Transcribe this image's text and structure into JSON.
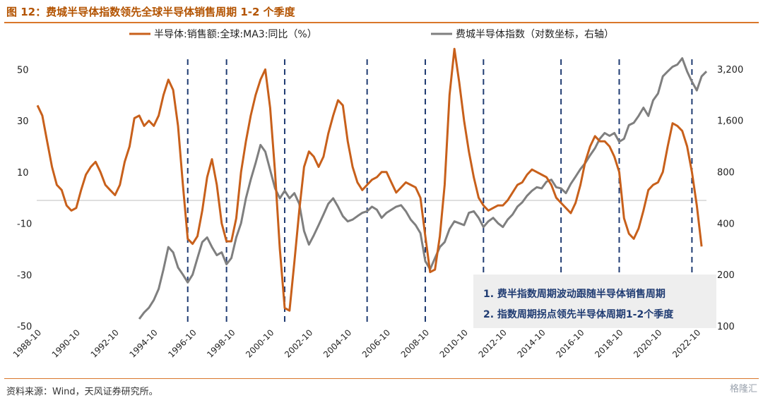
{
  "title": "图 12：费城半导体指数领先全球半导体销售周期 1-2 个季度",
  "source": "资料来源：Wind，天风证券研究所。",
  "watermark": "格隆汇",
  "colors": {
    "sales": "#c8601b",
    "sox": "#7f7f7f",
    "cycle_line": "#1f3b72",
    "annotation_bg": "#eeeeee",
    "accent": "#d9772b"
  },
  "annotation": [
    "1. 费半指数周期波动跟随半导体销售周期",
    "2. 指数周期拐点领先半导体周期1-2个季度"
  ],
  "chart_data": {
    "type": "line",
    "title": "图 12：费城半导体指数领先全球半导体销售周期 1-2 个季度",
    "x_ticks": [
      "1988-10",
      "1990-10",
      "1992-10",
      "1994-10",
      "1996-10",
      "1998-10",
      "2000-10",
      "2002-10",
      "2004-10",
      "2006-10",
      "2008-10",
      "2010-10",
      "2012-10",
      "2014-10",
      "2016-10",
      "2018-10",
      "2020-10",
      "2022-10"
    ],
    "y_left": {
      "ticks": [
        50,
        30,
        10,
        -10,
        -30,
        -50
      ],
      "range": [
        -50,
        60
      ]
    },
    "y_right": {
      "scale": "log",
      "ticks": [
        "3,200",
        "1,600",
        "800",
        "400",
        "200",
        "100"
      ],
      "tick_values": [
        3200,
        1600,
        800,
        400,
        200,
        100
      ],
      "range": [
        100,
        4500
      ]
    },
    "cycle_markers": [
      "1996-07",
      "1998-07",
      "2001-07",
      "2005-10",
      "2008-10",
      "2011-10",
      "2015-10",
      "2018-10",
      "2022-07"
    ],
    "series": [
      {
        "name": "半导体:销售额:全球:MA3:同比（%）",
        "axis": "left",
        "points": [
          [
            "1988-10",
            36
          ],
          [
            "1989-01",
            32
          ],
          [
            "1989-04",
            22
          ],
          [
            "1989-07",
            12
          ],
          [
            "1989-10",
            5
          ],
          [
            "1990-01",
            3
          ],
          [
            "1990-04",
            -3
          ],
          [
            "1990-07",
            -5
          ],
          [
            "1990-10",
            -4
          ],
          [
            "1991-01",
            3
          ],
          [
            "1991-04",
            9
          ],
          [
            "1991-07",
            12
          ],
          [
            "1991-10",
            14
          ],
          [
            "1992-01",
            10
          ],
          [
            "1992-04",
            5
          ],
          [
            "1992-07",
            3
          ],
          [
            "1992-10",
            1
          ],
          [
            "1993-01",
            5
          ],
          [
            "1993-04",
            14
          ],
          [
            "1993-07",
            20
          ],
          [
            "1993-10",
            31
          ],
          [
            "1994-01",
            32
          ],
          [
            "1994-04",
            28
          ],
          [
            "1994-07",
            30
          ],
          [
            "1994-10",
            28
          ],
          [
            "1995-01",
            32
          ],
          [
            "1995-04",
            40
          ],
          [
            "1995-07",
            46
          ],
          [
            "1995-10",
            42
          ],
          [
            "1996-01",
            28
          ],
          [
            "1996-04",
            5
          ],
          [
            "1996-07",
            -16
          ],
          [
            "1996-10",
            -18
          ],
          [
            "1997-01",
            -15
          ],
          [
            "1997-04",
            -5
          ],
          [
            "1997-07",
            8
          ],
          [
            "1997-10",
            15
          ],
          [
            "1998-01",
            5
          ],
          [
            "1998-04",
            -10
          ],
          [
            "1998-07",
            -17
          ],
          [
            "1998-10",
            -17
          ],
          [
            "1999-01",
            -8
          ],
          [
            "1999-04",
            10
          ],
          [
            "1999-07",
            22
          ],
          [
            "1999-10",
            32
          ],
          [
            "2000-01",
            40
          ],
          [
            "2000-04",
            46
          ],
          [
            "2000-07",
            50
          ],
          [
            "2000-10",
            35
          ],
          [
            "2001-01",
            10
          ],
          [
            "2001-04",
            -20
          ],
          [
            "2001-07",
            -43
          ],
          [
            "2001-10",
            -44
          ],
          [
            "2002-01",
            -25
          ],
          [
            "2002-04",
            -5
          ],
          [
            "2002-07",
            12
          ],
          [
            "2002-10",
            18
          ],
          [
            "2003-01",
            16
          ],
          [
            "2003-04",
            12
          ],
          [
            "2003-07",
            16
          ],
          [
            "2003-10",
            25
          ],
          [
            "2004-01",
            32
          ],
          [
            "2004-04",
            38
          ],
          [
            "2004-07",
            36
          ],
          [
            "2004-10",
            22
          ],
          [
            "2005-01",
            12
          ],
          [
            "2005-04",
            6
          ],
          [
            "2005-07",
            3
          ],
          [
            "2005-10",
            5
          ],
          [
            "2006-01",
            7
          ],
          [
            "2006-04",
            8
          ],
          [
            "2006-07",
            10
          ],
          [
            "2006-10",
            10
          ],
          [
            "2007-01",
            6
          ],
          [
            "2007-04",
            2
          ],
          [
            "2007-07",
            4
          ],
          [
            "2007-10",
            6
          ],
          [
            "2008-01",
            5
          ],
          [
            "2008-04",
            4
          ],
          [
            "2008-07",
            0
          ],
          [
            "2008-10",
            -15
          ],
          [
            "2009-01",
            -29
          ],
          [
            "2009-04",
            -28
          ],
          [
            "2009-07",
            -15
          ],
          [
            "2009-10",
            5
          ],
          [
            "2010-01",
            40
          ],
          [
            "2010-04",
            58
          ],
          [
            "2010-07",
            45
          ],
          [
            "2010-10",
            30
          ],
          [
            "2011-01",
            18
          ],
          [
            "2011-04",
            8
          ],
          [
            "2011-07",
            0
          ],
          [
            "2011-10",
            -3
          ],
          [
            "2012-01",
            -5
          ],
          [
            "2012-04",
            -4
          ],
          [
            "2012-07",
            -3
          ],
          [
            "2012-10",
            -3
          ],
          [
            "2013-01",
            -1
          ],
          [
            "2013-04",
            2
          ],
          [
            "2013-07",
            5
          ],
          [
            "2013-10",
            6
          ],
          [
            "2014-01",
            9
          ],
          [
            "2014-04",
            11
          ],
          [
            "2014-07",
            10
          ],
          [
            "2014-10",
            9
          ],
          [
            "2015-01",
            8
          ],
          [
            "2015-04",
            5
          ],
          [
            "2015-07",
            0
          ],
          [
            "2015-10",
            -2
          ],
          [
            "2016-01",
            -4
          ],
          [
            "2016-04",
            -6
          ],
          [
            "2016-07",
            -2
          ],
          [
            "2016-10",
            5
          ],
          [
            "2017-01",
            14
          ],
          [
            "2017-04",
            20
          ],
          [
            "2017-07",
            24
          ],
          [
            "2017-10",
            22
          ],
          [
            "2018-01",
            22
          ],
          [
            "2018-04",
            20
          ],
          [
            "2018-07",
            16
          ],
          [
            "2018-10",
            10
          ],
          [
            "2019-01",
            -8
          ],
          [
            "2019-04",
            -14
          ],
          [
            "2019-07",
            -16
          ],
          [
            "2019-10",
            -12
          ],
          [
            "2020-01",
            -5
          ],
          [
            "2020-04",
            3
          ],
          [
            "2020-07",
            5
          ],
          [
            "2020-10",
            6
          ],
          [
            "2021-01",
            10
          ],
          [
            "2021-04",
            20
          ],
          [
            "2021-07",
            29
          ],
          [
            "2021-10",
            28
          ],
          [
            "2022-01",
            26
          ],
          [
            "2022-04",
            20
          ],
          [
            "2022-07",
            10
          ],
          [
            "2022-10",
            -3
          ],
          [
            "2023-01",
            -19
          ]
        ]
      },
      {
        "name": "费城半导体指数（对数坐标，右轴）",
        "axis": "right",
        "points": [
          [
            "1994-01",
            110
          ],
          [
            "1994-04",
            120
          ],
          [
            "1994-07",
            128
          ],
          [
            "1994-10",
            142
          ],
          [
            "1995-01",
            165
          ],
          [
            "1995-04",
            215
          ],
          [
            "1995-07",
            290
          ],
          [
            "1995-10",
            270
          ],
          [
            "1996-01",
            220
          ],
          [
            "1996-04",
            200
          ],
          [
            "1996-07",
            180
          ],
          [
            "1996-10",
            200
          ],
          [
            "1997-01",
            250
          ],
          [
            "1997-04",
            310
          ],
          [
            "1997-07",
            330
          ],
          [
            "1997-10",
            290
          ],
          [
            "1998-01",
            260
          ],
          [
            "1998-04",
            270
          ],
          [
            "1998-07",
            230
          ],
          [
            "1998-10",
            250
          ],
          [
            "1999-01",
            330
          ],
          [
            "1999-04",
            400
          ],
          [
            "1999-07",
            560
          ],
          [
            "1999-10",
            720
          ],
          [
            "2000-01",
            900
          ],
          [
            "2000-04",
            1150
          ],
          [
            "2000-07",
            1050
          ],
          [
            "2000-10",
            820
          ],
          [
            "2001-01",
            640
          ],
          [
            "2001-04",
            560
          ],
          [
            "2001-07",
            620
          ],
          [
            "2001-10",
            560
          ],
          [
            "2002-01",
            600
          ],
          [
            "2002-04",
            520
          ],
          [
            "2002-07",
            360
          ],
          [
            "2002-10",
            300
          ],
          [
            "2003-01",
            340
          ],
          [
            "2003-04",
            390
          ],
          [
            "2003-07",
            450
          ],
          [
            "2003-10",
            520
          ],
          [
            "2004-01",
            560
          ],
          [
            "2004-04",
            500
          ],
          [
            "2004-07",
            440
          ],
          [
            "2004-10",
            410
          ],
          [
            "2005-01",
            420
          ],
          [
            "2005-04",
            440
          ],
          [
            "2005-07",
            460
          ],
          [
            "2005-10",
            470
          ],
          [
            "2006-01",
            500
          ],
          [
            "2006-04",
            480
          ],
          [
            "2006-07",
            430
          ],
          [
            "2006-10",
            460
          ],
          [
            "2007-01",
            480
          ],
          [
            "2007-04",
            500
          ],
          [
            "2007-07",
            510
          ],
          [
            "2007-10",
            470
          ],
          [
            "2008-01",
            420
          ],
          [
            "2008-04",
            390
          ],
          [
            "2008-07",
            350
          ],
          [
            "2008-10",
            240
          ],
          [
            "2009-01",
            215
          ],
          [
            "2009-04",
            250
          ],
          [
            "2009-07",
            290
          ],
          [
            "2009-10",
            310
          ],
          [
            "2010-01",
            370
          ],
          [
            "2010-04",
            410
          ],
          [
            "2010-07",
            400
          ],
          [
            "2010-10",
            390
          ],
          [
            "2011-01",
            460
          ],
          [
            "2011-04",
            470
          ],
          [
            "2011-07",
            430
          ],
          [
            "2011-10",
            380
          ],
          [
            "2012-01",
            410
          ],
          [
            "2012-04",
            430
          ],
          [
            "2012-07",
            400
          ],
          [
            "2012-10",
            380
          ],
          [
            "2013-01",
            420
          ],
          [
            "2013-04",
            450
          ],
          [
            "2013-07",
            500
          ],
          [
            "2013-10",
            530
          ],
          [
            "2014-01",
            580
          ],
          [
            "2014-04",
            620
          ],
          [
            "2014-07",
            650
          ],
          [
            "2014-10",
            640
          ],
          [
            "2015-01",
            700
          ],
          [
            "2015-04",
            720
          ],
          [
            "2015-07",
            650
          ],
          [
            "2015-10",
            640
          ],
          [
            "2016-01",
            600
          ],
          [
            "2016-04",
            680
          ],
          [
            "2016-07",
            750
          ],
          [
            "2016-10",
            830
          ],
          [
            "2017-01",
            900
          ],
          [
            "2017-04",
            1000
          ],
          [
            "2017-07",
            1100
          ],
          [
            "2017-10",
            1250
          ],
          [
            "2018-01",
            1350
          ],
          [
            "2018-04",
            1300
          ],
          [
            "2018-07",
            1350
          ],
          [
            "2018-10",
            1200
          ],
          [
            "2019-01",
            1250
          ],
          [
            "2019-04",
            1500
          ],
          [
            "2019-07",
            1550
          ],
          [
            "2019-10",
            1700
          ],
          [
            "2020-01",
            1900
          ],
          [
            "2020-04",
            1700
          ],
          [
            "2020-07",
            2100
          ],
          [
            "2020-10",
            2300
          ],
          [
            "2021-01",
            2900
          ],
          [
            "2021-04",
            3100
          ],
          [
            "2021-07",
            3300
          ],
          [
            "2021-10",
            3400
          ],
          [
            "2022-01",
            3700
          ],
          [
            "2022-04",
            3100
          ],
          [
            "2022-07",
            2700
          ],
          [
            "2022-10",
            2400
          ],
          [
            "2023-01",
            2900
          ],
          [
            "2023-04",
            3100
          ]
        ]
      }
    ],
    "legend_placement": "top"
  }
}
